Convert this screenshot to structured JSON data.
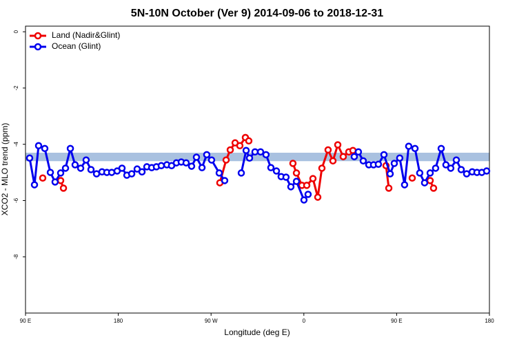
{
  "chart_data": {
    "type": "line",
    "title": "5N-10N October (Ver 9)   2014-09-06 to 2018-12-31",
    "x_label": "Longitude (deg E)",
    "y_label": "XCO2 - MLO trend (ppm)",
    "xlim": [
      90,
      540
    ],
    "xticks": [
      {
        "value": 90,
        "label": "90 E"
      },
      180,
      {
        "value": 270,
        "label": "90 W"
      },
      {
        "value": 360,
        "label": "0"
      },
      {
        "value": 450,
        "label": "90 E"
      },
      {
        "value": 540,
        "label": "180"
      }
    ],
    "ylim": [
      -10,
      0.2
    ],
    "yticks": [
      0,
      -2,
      -4,
      -6,
      -8
    ],
    "band": [
      -4.6,
      -4.3
    ],
    "band_color": "#a9c1e0",
    "legend": "top-left",
    "series": [
      {
        "name": "Land (Nadir&Glint)",
        "color": "#ee0000",
        "x": [
          106.7,
          null,
          124.1,
          126.8,
          null,
          278.5,
          284.6,
          288.6,
          293.3,
          297.9,
          303.3,
          306.6,
          null,
          349.4,
          352.8,
          358.1,
          362.8,
          368.8,
          373.5,
          377.5,
          383.5,
          388.2,
          392.9,
          398.2,
          403.6,
          407.6,
          null,
          439.7,
          442.4,
          null,
          465.1,
          null,
          482.5,
          485.8
        ],
        "values": [
          -5.2,
          null,
          -5.29,
          -5.56,
          null,
          -5.37,
          -4.56,
          -4.2,
          -3.95,
          -4.05,
          -3.76,
          -3.88,
          null,
          -4.68,
          -5.02,
          -5.46,
          -5.46,
          -5.22,
          -5.88,
          -4.85,
          -4.2,
          -4.59,
          -4.02,
          -4.44,
          -4.27,
          -4.22,
          null,
          -4.76,
          -5.56,
          null,
          -5.2,
          null,
          -5.29,
          -5.56
        ]
      },
      {
        "name": "Ocean (Glint)",
        "color": "#0000ee",
        "x": [
          94.0,
          98.7,
          102.7,
          108.7,
          114.1,
          118.7,
          124.1,
          128.8,
          133.5,
          138.1,
          143.5,
          148.8,
          153.5,
          158.9,
          164.2,
          168.9,
          173.6,
          178.9,
          183.6,
          188.3,
          193.0,
          198.3,
          203.0,
          207.7,
          212.4,
          217.0,
          221.7,
          227.1,
          231.7,
          236.4,
          241.1,
          245.8,
          251.1,
          255.8,
          261.2,
          265.8,
          270.5,
          277.9,
          283.2,
          null,
          299.3,
          304,
          307.3,
          312.6,
          318,
          323.3,
          328,
          333.4,
          338,
          342.7,
          347.4,
          352.8,
          360.1,
          364.1,
          null,
          408.9,
          412.9,
          417.6,
          423,
          427.6,
          432.3,
          437.7,
          443.7,
          447.7,
          453,
          457.7,
          461.7,
          467.8,
          472.4,
          477.1,
          482.5,
          487.8,
          493.2,
          497.8,
          502.5,
          507.9,
          512.6,
          517.9,
          523.3,
          527.9,
          532.6,
          537.3
        ],
        "values": [
          -4.49,
          -5.44,
          -4.05,
          -4.15,
          -5.0,
          -5.34,
          -5.02,
          -4.85,
          -4.15,
          -4.73,
          -4.85,
          -4.56,
          -4.9,
          -5.05,
          -4.98,
          -5.0,
          -5.0,
          -4.95,
          -4.85,
          -5.1,
          -5.05,
          -4.88,
          -4.98,
          -4.8,
          -4.83,
          -4.8,
          -4.76,
          -4.73,
          -4.76,
          -4.66,
          -4.63,
          -4.66,
          -4.78,
          -4.46,
          -4.83,
          -4.37,
          -4.56,
          -5.02,
          -5.29,
          null,
          -5.02,
          -4.22,
          -4.49,
          -4.27,
          -4.27,
          -4.37,
          -4.83,
          -4.95,
          -5.15,
          -5.17,
          -5.51,
          -5.32,
          -5.98,
          -5.78,
          null,
          -4.44,
          -4.27,
          -4.59,
          -4.73,
          -4.73,
          -4.71,
          -4.37,
          -5.05,
          -4.68,
          -4.49,
          -5.44,
          -4.07,
          -4.15,
          -5.02,
          -5.37,
          -5.02,
          -4.85,
          -4.15,
          -4.73,
          -4.85,
          -4.56,
          -4.9,
          -5.05,
          -4.98,
          -5.0,
          -5.0,
          -4.95
        ]
      }
    ]
  }
}
